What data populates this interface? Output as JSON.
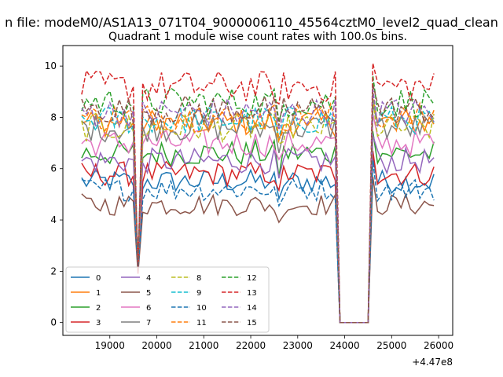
{
  "chart_data": {
    "type": "line",
    "suptitle": "n file: modeM0/AS1A13_071T04_9000006110_45564cztM0_level2_quad_clean",
    "title": "Quadrant 1 module wise count rates with 100.0s bins.",
    "xlabel": "",
    "ylabel": "",
    "x_offset_label": "+4.47e8",
    "xlim": [
      18000,
      26300
    ],
    "ylim": [
      -0.5,
      10.8
    ],
    "xticks": [
      "19000",
      "20000",
      "21000",
      "22000",
      "23000",
      "24000",
      "25000",
      "26000"
    ],
    "yticks": [
      "0",
      "2",
      "4",
      "6",
      "8",
      "10"
    ],
    "grid": false,
    "legend_placement": "lower-left",
    "bins": {
      "start": 18400,
      "step": 100,
      "count": 76,
      "dip_x": 19600,
      "gap_start": 23900,
      "gap_end": 24500
    },
    "series": [
      {
        "name": "0",
        "color": "#1f77b4",
        "dash": "solid",
        "level": 5.5
      },
      {
        "name": "1",
        "color": "#ff7f0e",
        "dash": "solid",
        "level": 7.8
      },
      {
        "name": "2",
        "color": "#2ca02c",
        "dash": "solid",
        "level": 6.6
      },
      {
        "name": "3",
        "color": "#d62728",
        "dash": "solid",
        "level": 5.8
      },
      {
        "name": "4",
        "color": "#9467bd",
        "dash": "solid",
        "level": 6.3
      },
      {
        "name": "5",
        "color": "#8c564b",
        "dash": "solid",
        "level": 4.6
      },
      {
        "name": "6",
        "color": "#e377c2",
        "dash": "solid",
        "level": 7.0
      },
      {
        "name": "7",
        "color": "#7f7f7f",
        "dash": "solid",
        "level": 7.6
      },
      {
        "name": "8",
        "color": "#bcbd22",
        "dash": "dashed",
        "level": 7.6
      },
      {
        "name": "9",
        "color": "#17becf",
        "dash": "dashed",
        "level": 7.9
      },
      {
        "name": "10",
        "color": "#1f77b4",
        "dash": "dashed",
        "level": 5.2
      },
      {
        "name": "11",
        "color": "#ff7f0e",
        "dash": "dashed",
        "level": 8.0
      },
      {
        "name": "12",
        "color": "#2ca02c",
        "dash": "dashed",
        "level": 8.6
      },
      {
        "name": "13",
        "color": "#d62728",
        "dash": "dashed",
        "level": 9.2
      },
      {
        "name": "14",
        "color": "#9467bd",
        "dash": "dashed",
        "level": 8.2
      },
      {
        "name": "15",
        "color": "#8c564b",
        "dash": "dashed",
        "level": 8.3
      }
    ]
  }
}
